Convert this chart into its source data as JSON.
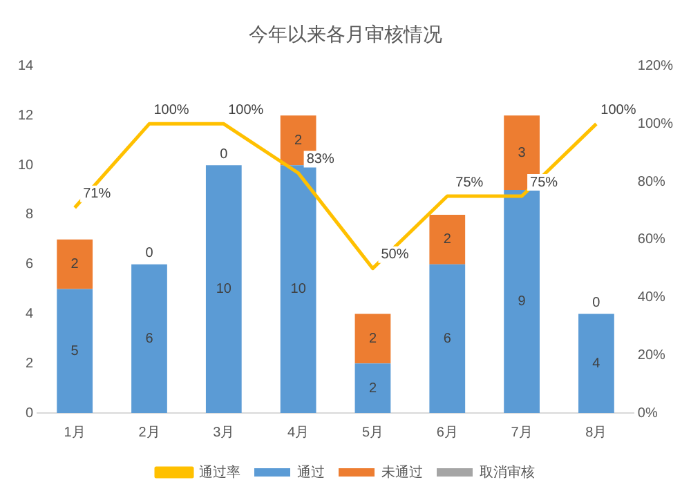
{
  "chart_data": {
    "type": "bar",
    "title": "今年以来各月审核情况",
    "categories": [
      "1月",
      "2月",
      "3月",
      "4月",
      "5月",
      "6月",
      "7月",
      "8月"
    ],
    "stacked": true,
    "series": [
      {
        "name": "通过",
        "color": "#5b9bd5",
        "values": [
          5,
          6,
          10,
          10,
          2,
          6,
          9,
          4
        ],
        "value_labels": [
          "5",
          "6",
          "10",
          "10",
          "2",
          "6",
          "9",
          "4"
        ]
      },
      {
        "name": "未通过",
        "color": "#ed7d31",
        "values": [
          2,
          0,
          0,
          2,
          2,
          2,
          3,
          0
        ],
        "value_labels": [
          "2",
          "0",
          "0",
          "2",
          "2",
          "2",
          "3",
          "0"
        ]
      },
      {
        "name": "取消审核",
        "color": "#a5a5a5",
        "values": [
          0,
          0,
          0,
          0,
          0,
          0,
          0,
          0
        ]
      },
      {
        "name": "通过率",
        "type": "line",
        "axis": "y2",
        "color": "#ffc000",
        "values": [
          71,
          100,
          100,
          83,
          50,
          75,
          75,
          100
        ],
        "value_labels": [
          "71%",
          "100%",
          "100%",
          "83%",
          "50%",
          "75%",
          "75%",
          "100%"
        ]
      }
    ],
    "ylim": [
      0,
      14
    ],
    "yticks": [
      0,
      2,
      4,
      6,
      8,
      10,
      12,
      14
    ],
    "y2lim": [
      0,
      120
    ],
    "y2ticks": [
      {
        "value": 0,
        "label": "0%"
      },
      {
        "value": 20,
        "label": "20%"
      },
      {
        "value": 40,
        "label": "40%"
      },
      {
        "value": 60,
        "label": "60%"
      },
      {
        "value": 80,
        "label": "80%"
      },
      {
        "value": 100,
        "label": "100%"
      },
      {
        "value": 120,
        "label": "120%"
      }
    ],
    "grid": false,
    "legend": "bottom",
    "marker": "none"
  }
}
